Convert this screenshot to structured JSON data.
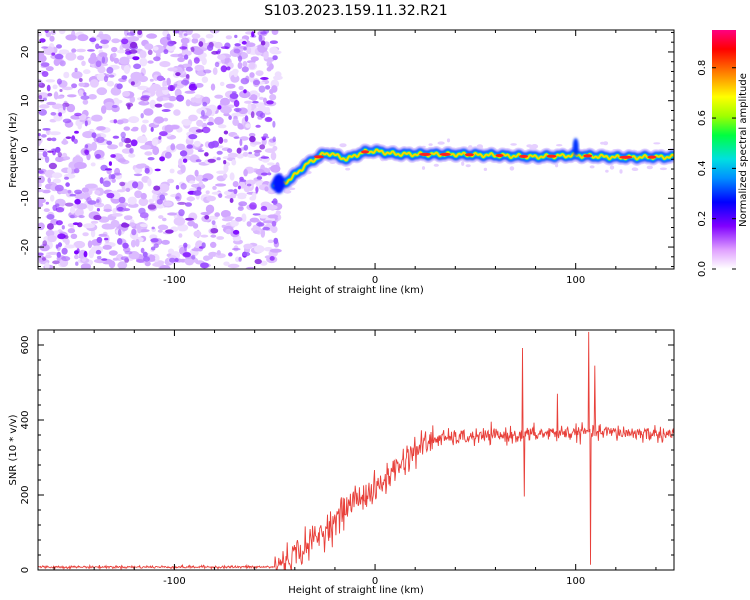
{
  "title": "S103.2023.159.11.32.R21",
  "colors": {
    "signal": "#e8403a",
    "scatter": "#8a2be2"
  },
  "chart_data": [
    {
      "type": "heatmap",
      "xlabel": "Height of straight line (km)",
      "ylabel": "Frequency (Hz)",
      "xlim": [
        -168,
        149
      ],
      "ylim": [
        -24.5,
        24.5
      ],
      "xticks": [
        -100,
        0,
        100
      ],
      "yticks": [
        -20,
        -10,
        0,
        10,
        20
      ],
      "colorbar": {
        "label": "Normalized spectral amplitude",
        "range": [
          0,
          0.95
        ],
        "ticks": [
          0.0,
          0.2,
          0.4,
          0.6,
          0.8
        ]
      },
      "noise_region_x": [
        -168,
        -48
      ],
      "ridge": {
        "name": "frequency track",
        "x": [
          -50,
          -46,
          -42,
          -38,
          -34,
          -30,
          -26,
          -22,
          -18,
          -14,
          -10,
          -5,
          0,
          10,
          20,
          40,
          60,
          80,
          100,
          110,
          120,
          130,
          149
        ],
        "y": [
          -7,
          -7,
          -6,
          -4.5,
          -3,
          -2,
          -1,
          -0.8,
          -1.5,
          -2,
          -1.2,
          -0.5,
          -0.3,
          -0.9,
          -1,
          -1,
          -1.2,
          -1.5,
          -1.2,
          -1.4,
          -1.6,
          -1.6,
          -1.5
        ]
      }
    },
    {
      "type": "line",
      "xlabel": "Height of straight line (km)",
      "ylabel": "SNR (10 * v/v)",
      "xlim": [
        -168,
        149
      ],
      "ylim": [
        0,
        640
      ],
      "xticks": [
        -100,
        0,
        100
      ],
      "yticks": [
        0,
        200,
        400,
        600
      ],
      "trend": {
        "x": [
          -168,
          -100,
          -50,
          -35,
          -20,
          -10,
          0,
          10,
          20,
          30,
          50,
          70,
          90,
          110,
          130,
          149
        ],
        "y": [
          8,
          8,
          8,
          60,
          130,
          190,
          210,
          270,
          320,
          350,
          355,
          360,
          365,
          368,
          365,
          362
        ]
      },
      "spikes": [
        {
          "x": 73.5,
          "y": 592
        },
        {
          "x": 74.5,
          "y": 196
        },
        {
          "x": 91,
          "y": 470
        },
        {
          "x": 106.5,
          "y": 635
        },
        {
          "x": 107.5,
          "y": 14
        },
        {
          "x": 109.5,
          "y": 545
        }
      ]
    }
  ]
}
